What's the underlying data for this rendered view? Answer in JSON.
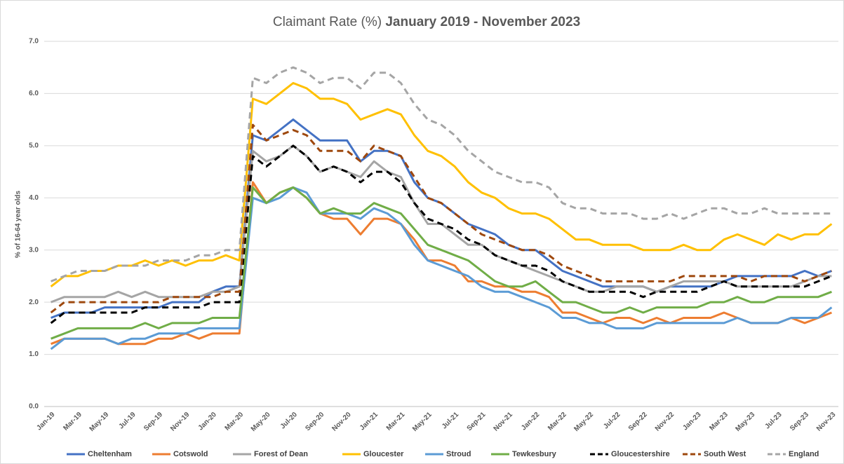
{
  "chart_data": {
    "type": "line",
    "title": [
      "Claimant Rate (%)",
      "January 2019 - November 2023"
    ],
    "y_label": "% of 16-64 year olds",
    "categories": [
      "Jan-19",
      null,
      "Mar-19",
      null,
      "May-19",
      null,
      "Jul-19",
      null,
      "Sep-19",
      null,
      "Nov-19",
      null,
      "Jan-20",
      null,
      "Mar-20",
      null,
      "May-20",
      null,
      "Jul-20",
      null,
      "Sep-20",
      null,
      "Nov-20",
      null,
      "Jan-21",
      null,
      "Mar-21",
      null,
      "May-21",
      null,
      "Jul-21",
      null,
      "Sep-21",
      null,
      "Nov-21",
      null,
      "Jan-22",
      null,
      "Mar-22",
      null,
      "May-22",
      null,
      "Jul-22",
      null,
      "Sep-22",
      null,
      "Nov-22",
      null,
      "Jan-23",
      null,
      "Mar-23",
      null,
      "May-23",
      null,
      "Jul-23",
      null,
      "Sep-23",
      null,
      "Nov-23"
    ],
    "ylim": [
      0,
      7
    ],
    "yticks": [
      {
        "value": 0,
        "label": "0.0"
      },
      {
        "value": 1,
        "label": "1.0"
      },
      {
        "value": 2,
        "label": "2.0"
      },
      {
        "value": 3,
        "label": "3.0"
      },
      {
        "value": 4,
        "label": "4.0"
      },
      {
        "value": 5,
        "label": "5.0"
      },
      {
        "value": 6,
        "label": "6.0"
      },
      {
        "value": 7,
        "label": "7.0"
      }
    ],
    "grid": true,
    "legend": "bottom",
    "series": [
      {
        "name": "Cheltenham",
        "color": "#4472c4",
        "dashed": false,
        "values": [
          1.7,
          1.8,
          1.8,
          1.8,
          1.9,
          1.9,
          1.9,
          1.9,
          1.9,
          2.0,
          2.0,
          2.0,
          2.2,
          2.3,
          2.3,
          5.2,
          5.1,
          5.3,
          5.5,
          5.3,
          5.1,
          5.1,
          5.1,
          4.7,
          4.9,
          4.9,
          4.8,
          4.3,
          4.0,
          3.9,
          3.7,
          3.5,
          3.4,
          3.3,
          3.1,
          3.0,
          3.0,
          2.8,
          2.6,
          2.5,
          2.4,
          2.3,
          2.3,
          2.3,
          2.3,
          2.2,
          2.3,
          2.3,
          2.3,
          2.3,
          2.4,
          2.5,
          2.5,
          2.5,
          2.5,
          2.5,
          2.6,
          2.5,
          2.6
        ]
      },
      {
        "name": "Cotswold",
        "color": "#ed7d31",
        "dashed": false,
        "values": [
          1.2,
          1.3,
          1.3,
          1.3,
          1.3,
          1.2,
          1.2,
          1.2,
          1.3,
          1.3,
          1.4,
          1.3,
          1.4,
          1.4,
          1.4,
          4.3,
          3.9,
          4.1,
          4.2,
          4.0,
          3.7,
          3.6,
          3.6,
          3.3,
          3.6,
          3.6,
          3.5,
          3.2,
          2.8,
          2.8,
          2.7,
          2.4,
          2.4,
          2.3,
          2.3,
          2.2,
          2.2,
          2.1,
          1.8,
          1.8,
          1.7,
          1.6,
          1.7,
          1.7,
          1.6,
          1.7,
          1.6,
          1.7,
          1.7,
          1.7,
          1.8,
          1.7,
          1.6,
          1.6,
          1.6,
          1.7,
          1.6,
          1.7,
          1.8
        ]
      },
      {
        "name": "Forest of Dean",
        "color": "#a5a5a5",
        "dashed": false,
        "values": [
          2.0,
          2.1,
          2.1,
          2.1,
          2.1,
          2.2,
          2.1,
          2.2,
          2.1,
          2.1,
          2.1,
          2.1,
          2.2,
          2.2,
          2.3,
          4.9,
          4.7,
          4.8,
          5.0,
          4.8,
          4.5,
          4.6,
          4.5,
          4.4,
          4.7,
          4.5,
          4.4,
          3.9,
          3.5,
          3.5,
          3.3,
          3.1,
          3.1,
          2.9,
          2.8,
          2.7,
          2.6,
          2.5,
          2.4,
          2.3,
          2.2,
          2.2,
          2.3,
          2.3,
          2.3,
          2.2,
          2.3,
          2.4,
          2.4,
          2.4,
          2.4,
          2.3,
          2.3,
          2.3,
          2.3,
          2.3,
          2.4,
          2.5,
          2.5
        ]
      },
      {
        "name": "Gloucester",
        "color": "#ffc000",
        "dashed": false,
        "values": [
          2.3,
          2.5,
          2.5,
          2.6,
          2.6,
          2.7,
          2.7,
          2.8,
          2.7,
          2.8,
          2.7,
          2.8,
          2.8,
          2.9,
          2.8,
          5.9,
          5.8,
          6.0,
          6.2,
          6.1,
          5.9,
          5.9,
          5.8,
          5.5,
          5.6,
          5.7,
          5.6,
          5.2,
          4.9,
          4.8,
          4.6,
          4.3,
          4.1,
          4.0,
          3.8,
          3.7,
          3.7,
          3.6,
          3.4,
          3.2,
          3.2,
          3.1,
          3.1,
          3.1,
          3.0,
          3.0,
          3.0,
          3.1,
          3.0,
          3.0,
          3.2,
          3.3,
          3.2,
          3.1,
          3.3,
          3.2,
          3.3,
          3.3,
          3.5
        ]
      },
      {
        "name": "Stroud",
        "color": "#5b9bd5",
        "dashed": false,
        "values": [
          1.1,
          1.3,
          1.3,
          1.3,
          1.3,
          1.2,
          1.3,
          1.3,
          1.4,
          1.4,
          1.4,
          1.5,
          1.5,
          1.5,
          1.5,
          4.0,
          3.9,
          4.0,
          4.2,
          4.1,
          3.7,
          3.7,
          3.7,
          3.6,
          3.8,
          3.7,
          3.5,
          3.1,
          2.8,
          2.7,
          2.6,
          2.5,
          2.3,
          2.2,
          2.2,
          2.1,
          2.0,
          1.9,
          1.7,
          1.7,
          1.6,
          1.6,
          1.5,
          1.5,
          1.5,
          1.6,
          1.6,
          1.6,
          1.6,
          1.6,
          1.6,
          1.7,
          1.6,
          1.6,
          1.6,
          1.7,
          1.7,
          1.7,
          1.9
        ]
      },
      {
        "name": "Tewkesbury",
        "color": "#70ad47",
        "dashed": false,
        "values": [
          1.3,
          1.4,
          1.5,
          1.5,
          1.5,
          1.5,
          1.5,
          1.6,
          1.5,
          1.6,
          1.6,
          1.6,
          1.7,
          1.7,
          1.7,
          4.2,
          3.9,
          4.1,
          4.2,
          4.0,
          3.7,
          3.8,
          3.7,
          3.7,
          3.9,
          3.8,
          3.7,
          3.4,
          3.1,
          3.0,
          2.9,
          2.8,
          2.6,
          2.4,
          2.3,
          2.3,
          2.4,
          2.2,
          2.0,
          2.0,
          1.9,
          1.8,
          1.8,
          1.9,
          1.8,
          1.9,
          1.9,
          1.9,
          1.9,
          2.0,
          2.0,
          2.1,
          2.0,
          2.0,
          2.1,
          2.1,
          2.1,
          2.1,
          2.2
        ]
      },
      {
        "name": "Gloucestershire",
        "color": "#000000",
        "dashed": true,
        "values": [
          1.6,
          1.8,
          1.8,
          1.8,
          1.8,
          1.8,
          1.8,
          1.9,
          1.9,
          1.9,
          1.9,
          1.9,
          2.0,
          2.0,
          2.0,
          4.8,
          4.6,
          4.8,
          5.0,
          4.8,
          4.5,
          4.6,
          4.5,
          4.3,
          4.5,
          4.5,
          4.3,
          3.9,
          3.6,
          3.5,
          3.4,
          3.2,
          3.1,
          2.9,
          2.8,
          2.7,
          2.7,
          2.6,
          2.4,
          2.3,
          2.2,
          2.2,
          2.2,
          2.2,
          2.1,
          2.2,
          2.2,
          2.2,
          2.2,
          2.3,
          2.4,
          2.3,
          2.3,
          2.3,
          2.3,
          2.3,
          2.3,
          2.4,
          2.5
        ]
      },
      {
        "name": "South West",
        "color": "#9e480e",
        "dashed": true,
        "values": [
          1.8,
          2.0,
          2.0,
          2.0,
          2.0,
          2.0,
          2.0,
          2.0,
          2.0,
          2.1,
          2.1,
          2.1,
          2.1,
          2.2,
          2.2,
          5.4,
          5.1,
          5.2,
          5.3,
          5.2,
          4.9,
          4.9,
          4.9,
          4.7,
          5.0,
          4.9,
          4.8,
          4.4,
          4.0,
          3.9,
          3.7,
          3.5,
          3.3,
          3.2,
          3.1,
          3.0,
          3.0,
          2.9,
          2.7,
          2.6,
          2.5,
          2.4,
          2.4,
          2.4,
          2.4,
          2.4,
          2.4,
          2.5,
          2.5,
          2.5,
          2.5,
          2.5,
          2.4,
          2.5,
          2.5,
          2.5,
          2.4,
          2.5,
          2.6
        ]
      },
      {
        "name": "England",
        "color": "#a5a5a5",
        "dashed": true,
        "values": [
          2.4,
          2.5,
          2.6,
          2.6,
          2.6,
          2.7,
          2.7,
          2.7,
          2.8,
          2.8,
          2.8,
          2.9,
          2.9,
          3.0,
          3.0,
          6.3,
          6.2,
          6.4,
          6.5,
          6.4,
          6.2,
          6.3,
          6.3,
          6.1,
          6.4,
          6.4,
          6.2,
          5.8,
          5.5,
          5.4,
          5.2,
          4.9,
          4.7,
          4.5,
          4.4,
          4.3,
          4.3,
          4.2,
          3.9,
          3.8,
          3.8,
          3.7,
          3.7,
          3.7,
          3.6,
          3.6,
          3.7,
          3.6,
          3.7,
          3.8,
          3.8,
          3.7,
          3.7,
          3.8,
          3.7,
          3.7,
          3.7,
          3.7,
          3.7
        ]
      }
    ]
  }
}
